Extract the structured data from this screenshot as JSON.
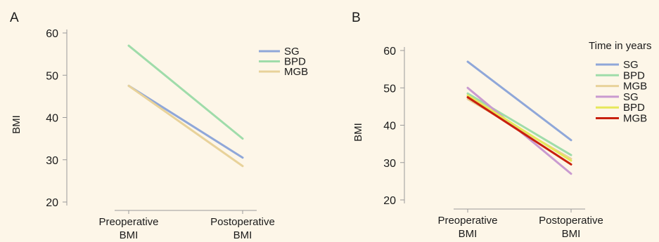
{
  "background": "#fdf6e8",
  "chart_data": [
    {
      "panel_label": "A",
      "type": "line",
      "categories": [
        "Preoperative BMI",
        "Postoperative BMI"
      ],
      "ylabel": "BMI",
      "ylim": [
        20,
        60
      ],
      "yticks": [
        20,
        30,
        40,
        50,
        60
      ],
      "grid": false,
      "legend_position": "top-right",
      "legend_title": "",
      "series": [
        {
          "name": "SG",
          "values": [
            47.5,
            30.5
          ],
          "color": "#8fa7d9"
        },
        {
          "name": "BPD",
          "values": [
            57,
            35
          ],
          "color": "#9fdcaa"
        },
        {
          "name": "MGB",
          "values": [
            47.5,
            28.5
          ],
          "color": "#e8d29a"
        }
      ]
    },
    {
      "panel_label": "B",
      "type": "line",
      "categories": [
        "Preoperative BMI",
        "Postoperative BMI"
      ],
      "ylabel": "BMI",
      "ylim": [
        20,
        60
      ],
      "yticks": [
        20,
        30,
        40,
        50,
        60
      ],
      "grid": false,
      "legend_position": "top-right",
      "legend_title": "Time in years",
      "series": [
        {
          "name": "SG",
          "values": [
            57,
            36
          ],
          "color": "#8fa7d9"
        },
        {
          "name": "BPD",
          "values": [
            48.5,
            32
          ],
          "color": "#9fdcaa"
        },
        {
          "name": "MGB",
          "values": [
            47,
            31
          ],
          "color": "#e8d29a"
        },
        {
          "name": "SG",
          "values": [
            50,
            27
          ],
          "color": "#c99ad0"
        },
        {
          "name": "BPD",
          "values": [
            48,
            30.5
          ],
          "color": "#e6e85a"
        },
        {
          "name": "MGB",
          "values": [
            47.5,
            29.5
          ],
          "color": "#c8200e"
        }
      ]
    }
  ]
}
